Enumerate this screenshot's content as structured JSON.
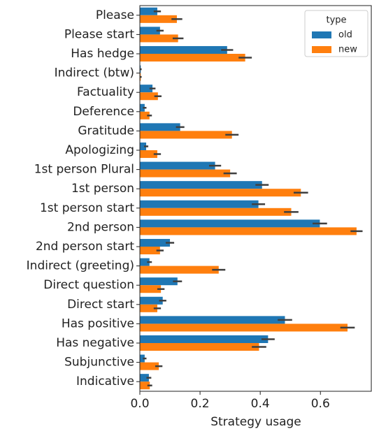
{
  "chart_data": {
    "type": "barh",
    "xlabel": "Strategy usage",
    "categories": [
      "Please",
      "Please start",
      "Has  hedge",
      "Indirect  (btw)",
      "Factuality",
      "Deference",
      "Gratitude",
      "Apologizing",
      "1st person Plural",
      "1st person",
      "1st person start",
      "2nd person",
      "2nd person start",
      "Indirect (greeting)",
      "Direct question",
      "Direct start",
      "Has  positive",
      "Has  negative",
      "Subjunctive",
      "Indicative"
    ],
    "series": [
      {
        "name": "old",
        "color": "#1f77b4",
        "values": [
          0.058,
          0.067,
          0.29,
          0.003,
          0.042,
          0.016,
          0.134,
          0.021,
          0.25,
          0.406,
          0.394,
          0.598,
          0.1,
          0.032,
          0.125,
          0.076,
          0.482,
          0.426,
          0.016,
          0.03
        ],
        "errors": [
          0.012,
          0.012,
          0.02,
          0.003,
          0.01,
          0.006,
          0.014,
          0.007,
          0.02,
          0.022,
          0.022,
          0.024,
          0.014,
          0.008,
          0.015,
          0.012,
          0.024,
          0.022,
          0.006,
          0.008
        ]
      },
      {
        "name": "new",
        "color": "#ff7f0e",
        "values": [
          0.123,
          0.127,
          0.35,
          0.003,
          0.06,
          0.032,
          0.306,
          0.058,
          0.3,
          0.535,
          0.503,
          0.72,
          0.067,
          0.262,
          0.07,
          0.058,
          0.69,
          0.396,
          0.063,
          0.033
        ],
        "errors": [
          0.018,
          0.018,
          0.022,
          0.003,
          0.012,
          0.008,
          0.022,
          0.012,
          0.022,
          0.024,
          0.024,
          0.02,
          0.012,
          0.022,
          0.012,
          0.012,
          0.024,
          0.024,
          0.012,
          0.008
        ]
      }
    ],
    "xlim": [
      0,
      0.769
    ],
    "xticks": [
      {
        "value": 0,
        "label": "0.0"
      },
      0.2,
      0.4,
      0.6
    ],
    "legend": {
      "title": "type",
      "position": "upper right"
    }
  }
}
